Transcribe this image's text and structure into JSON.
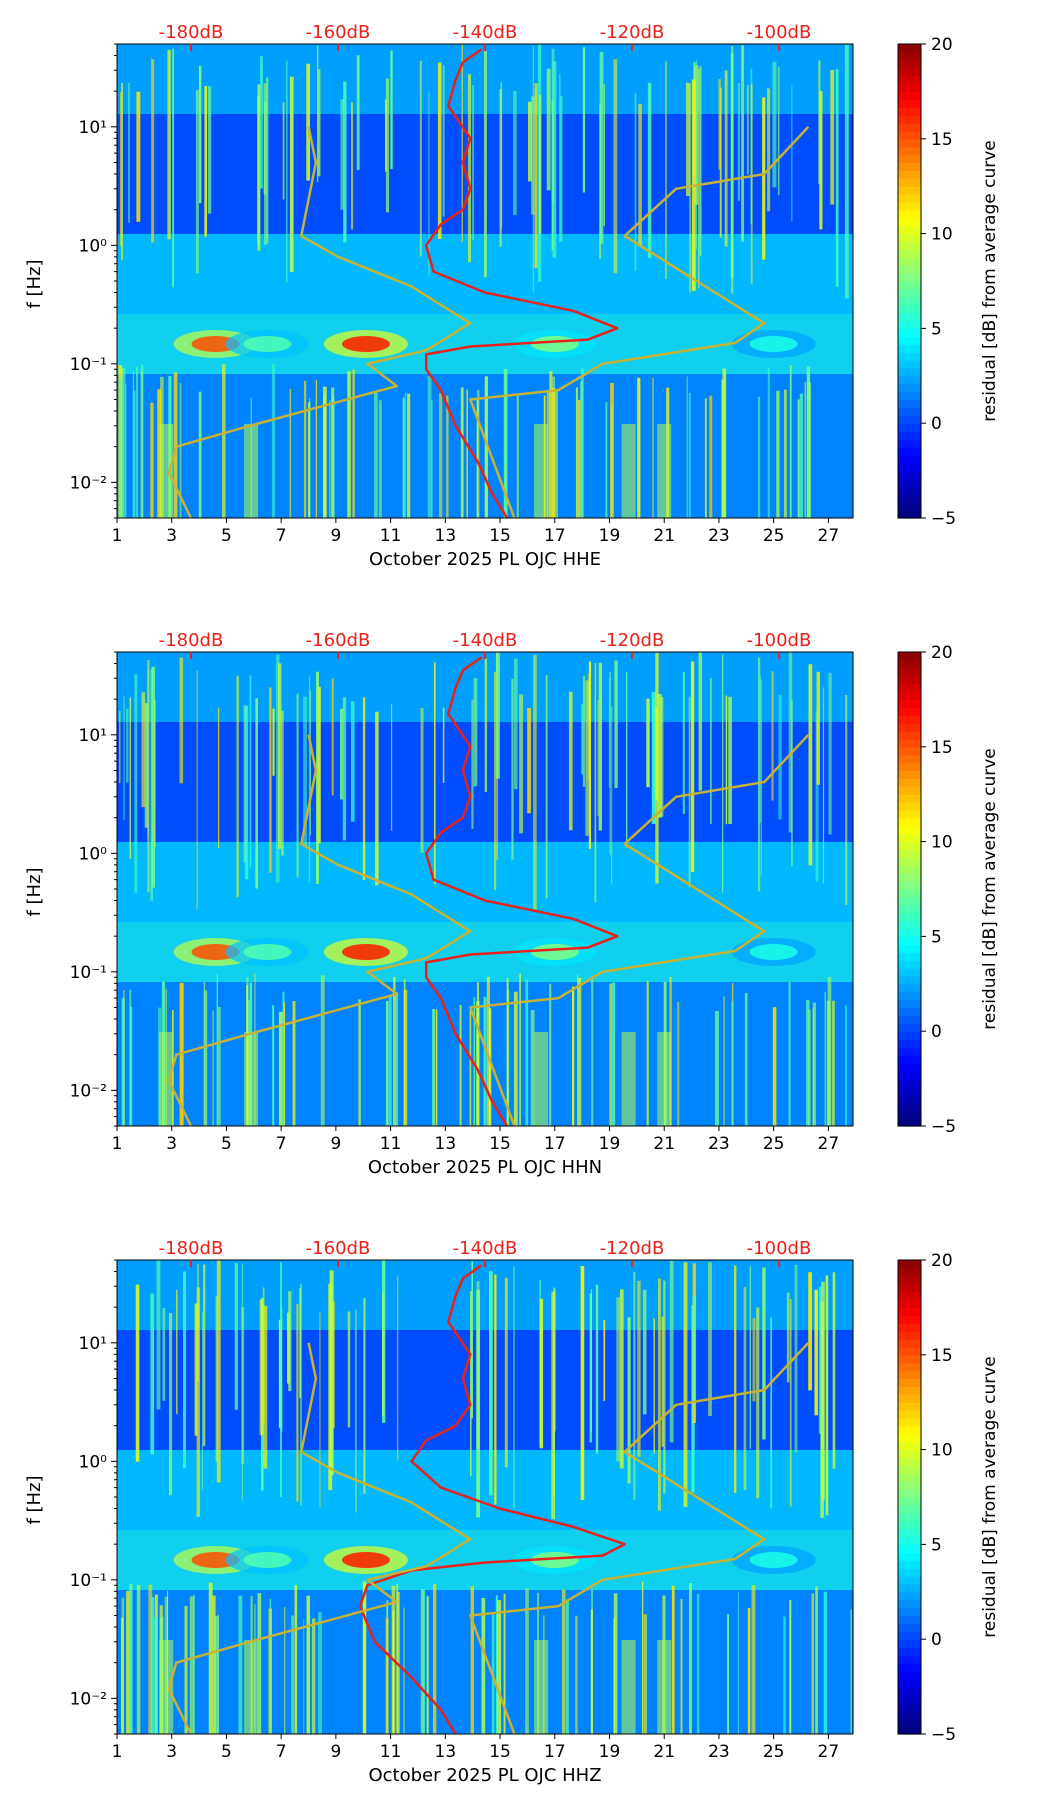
{
  "chart_data": [
    {
      "type": "heatmap",
      "xlabel": "October 2025 PL OJC  HHE",
      "ylabel": "f [Hz]",
      "x_ticks": [
        "1",
        "3",
        "5",
        "7",
        "9",
        "11",
        "13",
        "15",
        "17",
        "19",
        "21",
        "23",
        "25",
        "27"
      ],
      "y_ticks": [
        "10⁻²",
        "10⁻¹",
        "10⁰",
        "10¹"
      ],
      "y_scale": "log",
      "xlim": [
        1,
        27.9
      ],
      "ylim": [
        0.005,
        50
      ],
      "top_ticks": [
        "-180dB",
        "-160dB",
        "-140dB",
        "-120dB",
        "-100dB"
      ],
      "top_tick_values_db": [
        -180,
        -160,
        -140,
        -120,
        -100
      ],
      "colorbar": {
        "label": "residual [dB] from average curve",
        "ticks": [
          "−5",
          "0",
          "5",
          "10",
          "15",
          "20"
        ],
        "range": [
          -5,
          20
        ],
        "colormap": "jet"
      },
      "series": [
        {
          "color": "#e8211b",
          "units": "dB",
          "points": [
            [
              -140.5,
              45
            ],
            [
              -143,
              35
            ],
            [
              -144,
              25
            ],
            [
              -145,
              15
            ],
            [
              -142,
              8
            ],
            [
              -143,
              5
            ],
            [
              -142,
              3
            ],
            [
              -143,
              2
            ],
            [
              -146,
              1.5
            ],
            [
              -148,
              1.0
            ],
            [
              -147,
              0.6
            ],
            [
              -140,
              0.4
            ],
            [
              -128,
              0.28
            ],
            [
              -122,
              0.2
            ],
            [
              -126,
              0.16
            ],
            [
              -142,
              0.14
            ],
            [
              -148,
              0.12
            ],
            [
              -148,
              0.09
            ],
            [
              -146,
              0.06
            ],
            [
              -144,
              0.03
            ],
            [
              -141,
              0.015
            ],
            [
              -139,
              0.008
            ],
            [
              -137,
              0.005
            ]
          ]
        },
        {
          "color": "#c8b233",
          "units": "dB",
          "points": [
            [
              -164,
              10
            ],
            [
              -163,
              5
            ],
            [
              -165,
              1.2
            ],
            [
              -160,
              0.8
            ],
            [
              -150,
              0.45
            ],
            [
              -142,
              0.22
            ],
            [
              -148,
              0.13
            ],
            [
              -156,
              0.1
            ],
            [
              -152,
              0.065
            ],
            [
              -172,
              0.03
            ],
            [
              -182,
              0.02
            ],
            [
              -183,
              0.012
            ],
            [
              -180,
              0.005
            ]
          ]
        },
        {
          "color": "#c8b233",
          "units": "dB",
          "points": [
            [
              -96,
              10
            ],
            [
              -102,
              4
            ],
            [
              -114,
              3
            ],
            [
              -121,
              1.2
            ],
            [
              -102,
              0.22
            ],
            [
              -106,
              0.15
            ],
            [
              -124,
              0.1
            ],
            [
              -130,
              0.06
            ],
            [
              -142,
              0.05
            ],
            [
              -136,
              0.005
            ]
          ]
        }
      ]
    },
    {
      "type": "heatmap",
      "xlabel": "October 2025 PL OJC  HHN",
      "ylabel": "f [Hz]",
      "x_ticks": [
        "1",
        "3",
        "5",
        "7",
        "9",
        "11",
        "13",
        "15",
        "17",
        "19",
        "21",
        "23",
        "25",
        "27"
      ],
      "y_ticks": [
        "10⁻²",
        "10⁻¹",
        "10⁰",
        "10¹"
      ],
      "y_scale": "log",
      "xlim": [
        1,
        27.9
      ],
      "ylim": [
        0.005,
        50
      ],
      "top_ticks": [
        "-180dB",
        "-160dB",
        "-140dB",
        "-120dB",
        "-100dB"
      ],
      "top_tick_values_db": [
        -180,
        -160,
        -140,
        -120,
        -100
      ],
      "colorbar": {
        "label": "residual [dB] from average curve",
        "ticks": [
          "−5",
          "0",
          "5",
          "10",
          "15",
          "20"
        ],
        "range": [
          -5,
          20
        ],
        "colormap": "jet"
      },
      "series": [
        {
          "color": "#e8211b",
          "units": "dB",
          "points": [
            [
              -140.5,
              45
            ],
            [
              -143,
              35
            ],
            [
              -144,
              25
            ],
            [
              -145,
              15
            ],
            [
              -142,
              8
            ],
            [
              -143,
              5
            ],
            [
              -142,
              3
            ],
            [
              -143,
              2
            ],
            [
              -146,
              1.5
            ],
            [
              -148,
              1.0
            ],
            [
              -147,
              0.6
            ],
            [
              -140,
              0.4
            ],
            [
              -128,
              0.28
            ],
            [
              -122,
              0.2
            ],
            [
              -126,
              0.16
            ],
            [
              -142,
              0.14
            ],
            [
              -148,
              0.12
            ],
            [
              -148,
              0.09
            ],
            [
              -146,
              0.06
            ],
            [
              -144,
              0.03
            ],
            [
              -141,
              0.015
            ],
            [
              -139,
              0.008
            ],
            [
              -137,
              0.005
            ]
          ]
        },
        {
          "color": "#c8b233",
          "units": "dB",
          "points": [
            [
              -164,
              10
            ],
            [
              -163,
              5
            ],
            [
              -165,
              1.2
            ],
            [
              -160,
              0.8
            ],
            [
              -150,
              0.45
            ],
            [
              -142,
              0.22
            ],
            [
              -148,
              0.13
            ],
            [
              -156,
              0.1
            ],
            [
              -152,
              0.065
            ],
            [
              -172,
              0.03
            ],
            [
              -182,
              0.02
            ],
            [
              -183,
              0.012
            ],
            [
              -180,
              0.005
            ]
          ]
        },
        {
          "color": "#c8b233",
          "units": "dB",
          "points": [
            [
              -96,
              10
            ],
            [
              -102,
              4
            ],
            [
              -114,
              3
            ],
            [
              -121,
              1.2
            ],
            [
              -102,
              0.22
            ],
            [
              -106,
              0.15
            ],
            [
              -124,
              0.1
            ],
            [
              -130,
              0.06
            ],
            [
              -142,
              0.05
            ],
            [
              -136,
              0.005
            ]
          ]
        }
      ]
    },
    {
      "type": "heatmap",
      "xlabel": "October 2025 PL OJC  HHZ",
      "ylabel": "f [Hz]",
      "x_ticks": [
        "1",
        "3",
        "5",
        "7",
        "9",
        "11",
        "13",
        "15",
        "17",
        "19",
        "21",
        "23",
        "25",
        "27"
      ],
      "y_ticks": [
        "10⁻²",
        "10⁻¹",
        "10⁰",
        "10¹"
      ],
      "y_scale": "log",
      "xlim": [
        1,
        27.9
      ],
      "ylim": [
        0.005,
        50
      ],
      "top_ticks": [
        "-180dB",
        "-160dB",
        "-140dB",
        "-120dB",
        "-100dB"
      ],
      "top_tick_values_db": [
        -180,
        -160,
        -140,
        -120,
        -100
      ],
      "colorbar": {
        "label": "residual [dB] from average curve",
        "ticks": [
          "−5",
          "0",
          "5",
          "10",
          "15",
          "20"
        ],
        "range": [
          -5,
          20
        ],
        "colormap": "jet"
      },
      "series": [
        {
          "color": "#e8211b",
          "units": "dB",
          "points": [
            [
              -140.5,
              45
            ],
            [
              -143,
              35
            ],
            [
              -144,
              25
            ],
            [
              -145,
              15
            ],
            [
              -142,
              8
            ],
            [
              -143,
              5
            ],
            [
              -142,
              3
            ],
            [
              -144,
              2
            ],
            [
              -148,
              1.5
            ],
            [
              -150,
              1.0
            ],
            [
              -146,
              0.6
            ],
            [
              -138,
              0.4
            ],
            [
              -128,
              0.28
            ],
            [
              -121,
              0.2
            ],
            [
              -124,
              0.16
            ],
            [
              -140,
              0.14
            ],
            [
              -150,
              0.12
            ],
            [
              -156,
              0.09
            ],
            [
              -157,
              0.06
            ],
            [
              -155,
              0.03
            ],
            [
              -150,
              0.015
            ],
            [
              -146,
              0.008
            ],
            [
              -144,
              0.005
            ]
          ]
        },
        {
          "color": "#c8b233",
          "units": "dB",
          "points": [
            [
              -164,
              10
            ],
            [
              -163,
              5
            ],
            [
              -165,
              1.2
            ],
            [
              -160,
              0.8
            ],
            [
              -150,
              0.45
            ],
            [
              -142,
              0.22
            ],
            [
              -148,
              0.13
            ],
            [
              -156,
              0.1
            ],
            [
              -152,
              0.065
            ],
            [
              -172,
              0.03
            ],
            [
              -182,
              0.02
            ],
            [
              -183,
              0.012
            ],
            [
              -180,
              0.005
            ]
          ]
        },
        {
          "color": "#c8b233",
          "units": "dB",
          "points": [
            [
              -96,
              10
            ],
            [
              -102,
              4
            ],
            [
              -114,
              3
            ],
            [
              -121,
              1.2
            ],
            [
              -102,
              0.22
            ],
            [
              -106,
              0.15
            ],
            [
              -124,
              0.1
            ],
            [
              -130,
              0.06
            ],
            [
              -142,
              0.05
            ],
            [
              -136,
              0.005
            ]
          ]
        }
      ]
    }
  ]
}
